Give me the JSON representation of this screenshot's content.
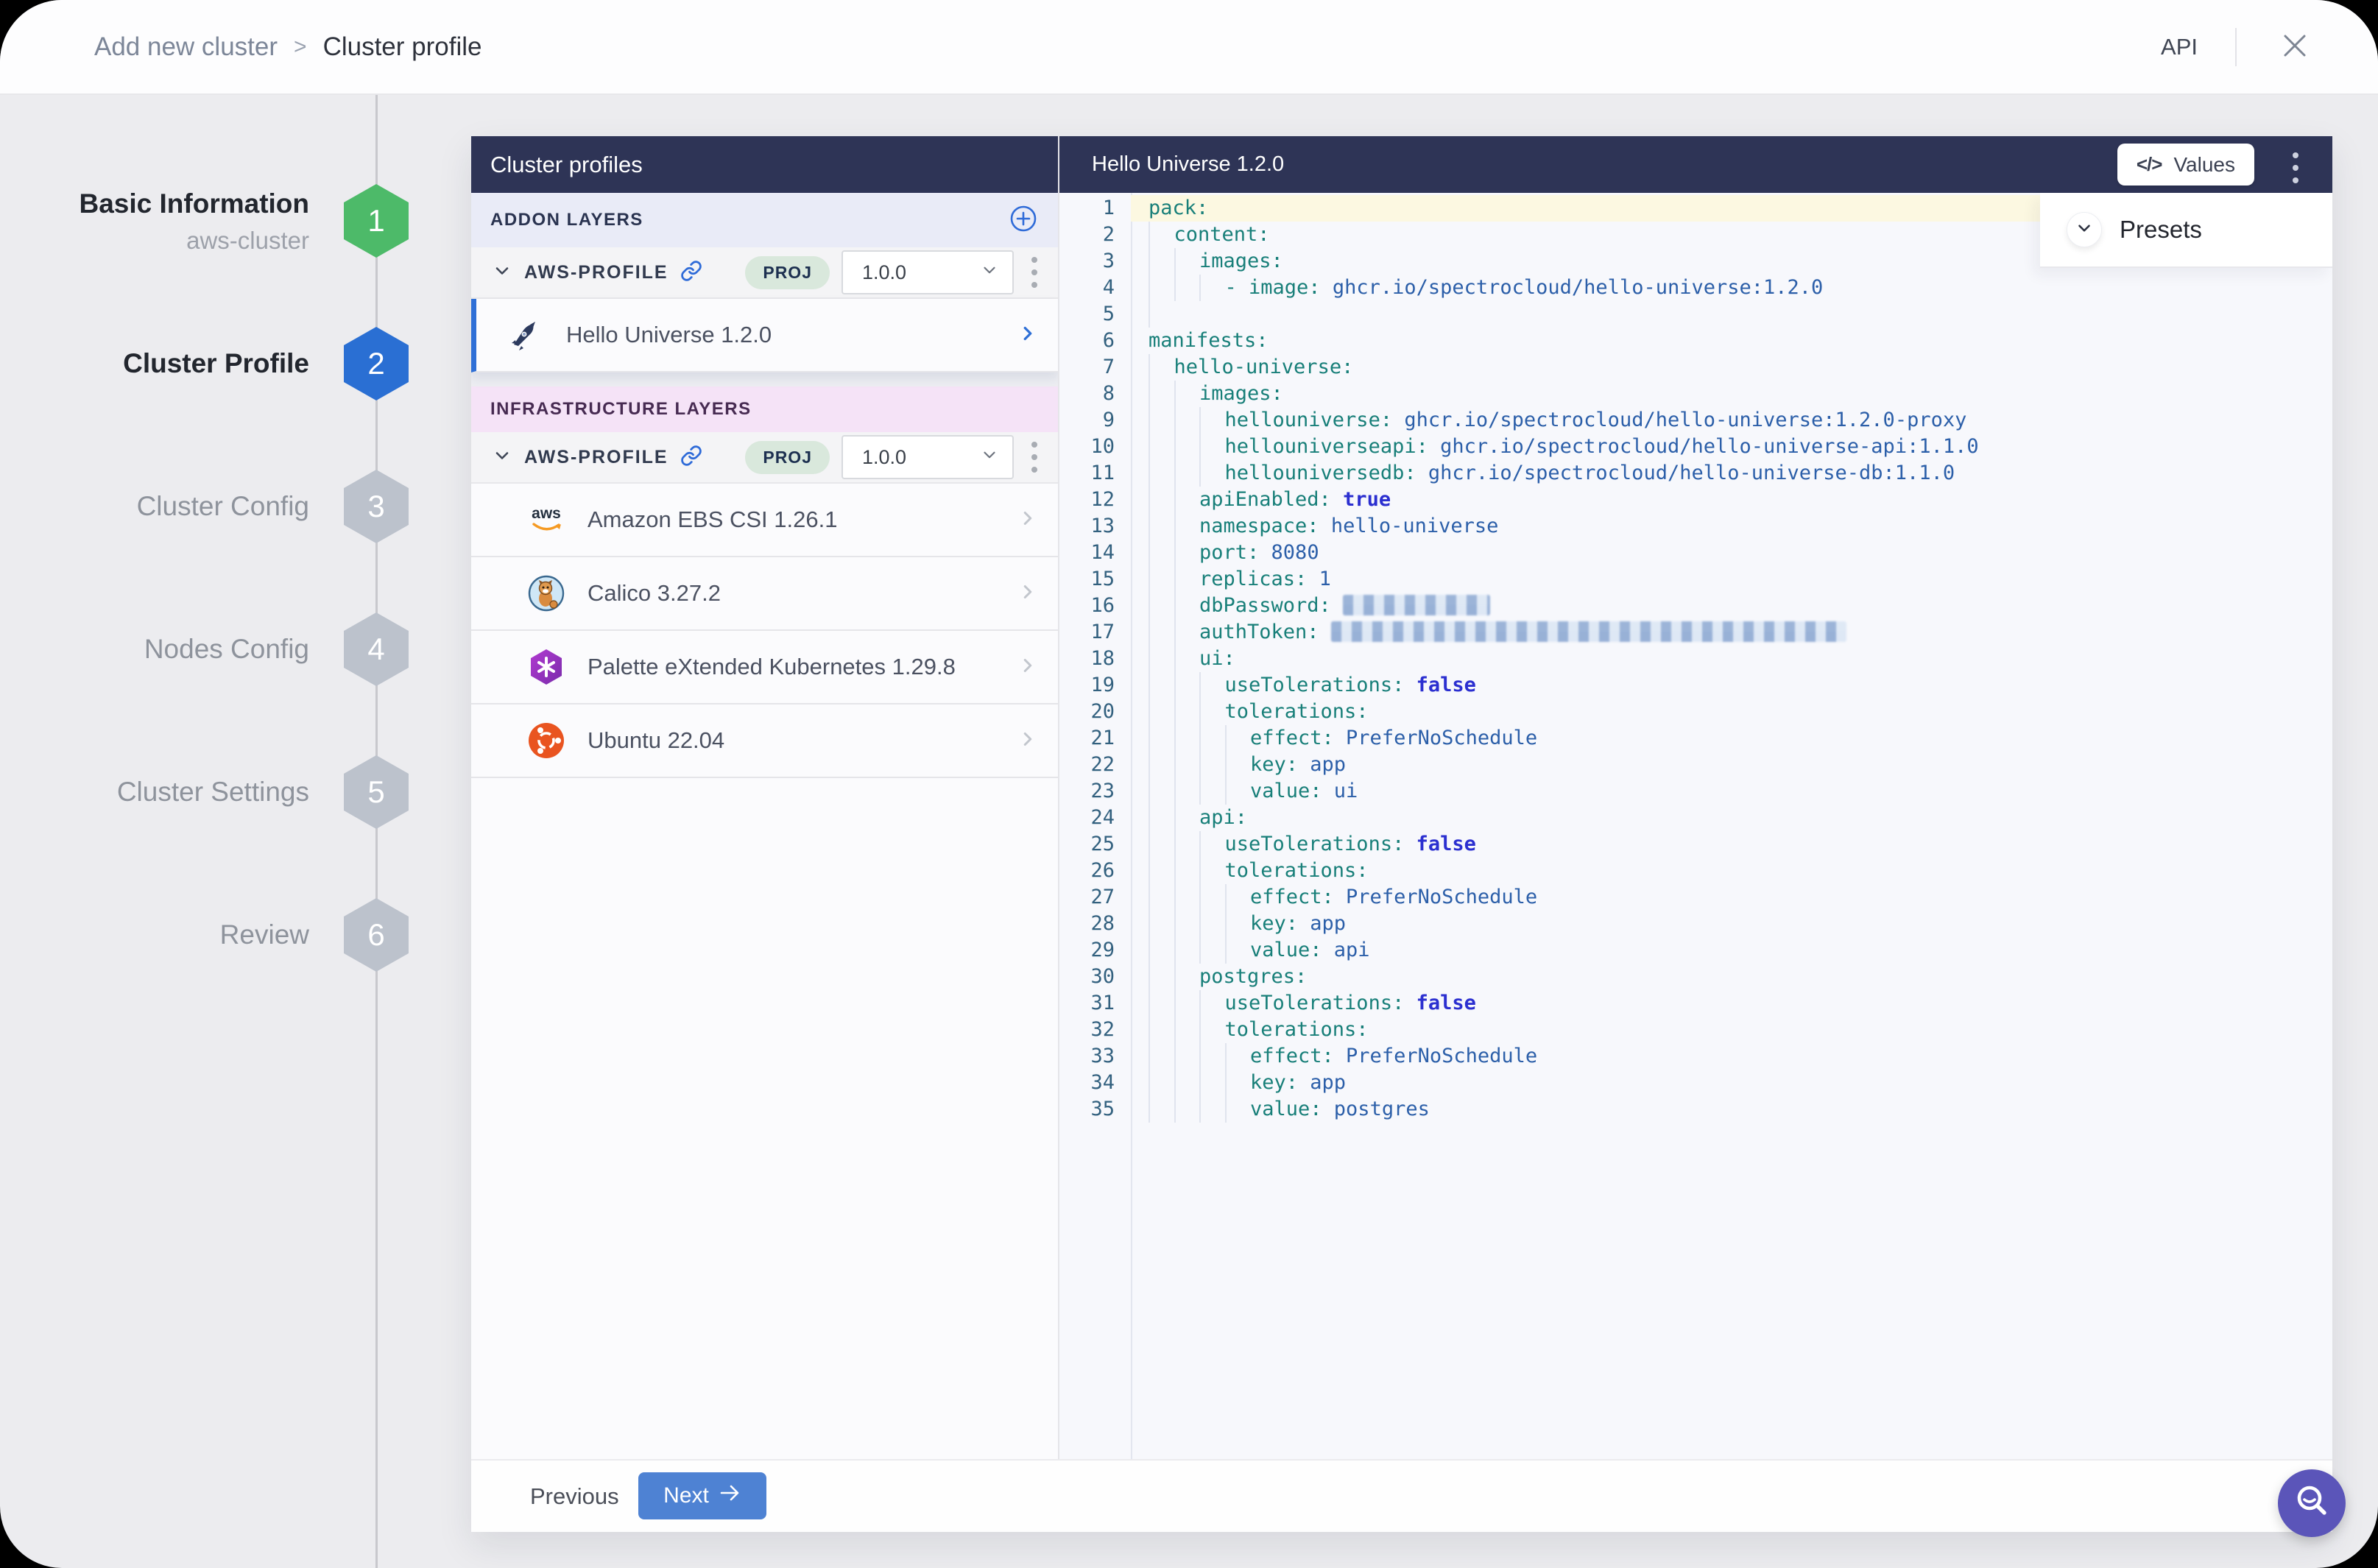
{
  "window": {
    "breadcrumb": {
      "parent": "Add new cluster",
      "separator": ">",
      "current": "Cluster profile"
    },
    "api_label": "API"
  },
  "stepper": {
    "steps": [
      {
        "num": "1",
        "label": "Basic Information",
        "sublabel": "aws-cluster",
        "state": "complete"
      },
      {
        "num": "2",
        "label": "Cluster Profile",
        "sublabel": "",
        "state": "active"
      },
      {
        "num": "3",
        "label": "Cluster Config",
        "sublabel": "",
        "state": "upcoming"
      },
      {
        "num": "4",
        "label": "Nodes Config",
        "sublabel": "",
        "state": "upcoming"
      },
      {
        "num": "5",
        "label": "Cluster Settings",
        "sublabel": "",
        "state": "upcoming"
      },
      {
        "num": "6",
        "label": "Review",
        "sublabel": "",
        "state": "upcoming"
      }
    ]
  },
  "profiles_panel": {
    "title": "Cluster profiles",
    "sections": [
      {
        "id": "addon",
        "label": "ADDON LAYERS",
        "has_add_button": true,
        "profile": {
          "name": "AWS-PROFILE",
          "scope": "PROJ",
          "version": "1.0.0"
        },
        "items": [
          {
            "label": "Hello Universe 1.2.0",
            "icon": "rocket-icon",
            "selected": true
          }
        ]
      },
      {
        "id": "infra",
        "label": "INFRASTRUCTURE LAYERS",
        "has_add_button": false,
        "profile": {
          "name": "AWS-PROFILE",
          "scope": "PROJ",
          "version": "1.0.0"
        },
        "items": [
          {
            "label": "Amazon EBS CSI 1.26.1",
            "icon": "aws-icon",
            "selected": false
          },
          {
            "label": "Calico 3.27.2",
            "icon": "calico-icon",
            "selected": false
          },
          {
            "label": "Palette eXtended Kubernetes 1.29.8",
            "icon": "kubernetes-icon",
            "selected": false
          },
          {
            "label": "Ubuntu 22.04",
            "icon": "ubuntu-icon",
            "selected": false
          }
        ]
      }
    ]
  },
  "editor": {
    "title": "Hello Universe 1.2.0",
    "values_button_label": "Values",
    "values_button_glyph": "</>",
    "presets_label": "Presets",
    "lines": [
      {
        "ind": 0,
        "hl": true,
        "seg": [
          {
            "c": "key",
            "t": "pack:"
          }
        ]
      },
      {
        "ind": 1,
        "hl": false,
        "seg": [
          {
            "c": "key",
            "t": "content:"
          }
        ]
      },
      {
        "ind": 2,
        "hl": false,
        "seg": [
          {
            "c": "key",
            "t": "images:"
          }
        ]
      },
      {
        "ind": 3,
        "hl": false,
        "seg": [
          {
            "c": "key",
            "t": "- image: "
          },
          {
            "c": "val",
            "t": "ghcr.io/spectrocloud/hello-universe:1.2.0"
          }
        ]
      },
      {
        "ind": 1,
        "hl": false,
        "seg": []
      },
      {
        "ind": 0,
        "hl": false,
        "seg": [
          {
            "c": "key",
            "t": "manifests:"
          }
        ]
      },
      {
        "ind": 1,
        "hl": false,
        "seg": [
          {
            "c": "key",
            "t": "hello-universe:"
          }
        ]
      },
      {
        "ind": 2,
        "hl": false,
        "seg": [
          {
            "c": "key",
            "t": "images:"
          }
        ]
      },
      {
        "ind": 3,
        "hl": false,
        "seg": [
          {
            "c": "key",
            "t": "hellouniverse: "
          },
          {
            "c": "val",
            "t": "ghcr.io/spectrocloud/hello-universe:1.2.0-proxy"
          }
        ]
      },
      {
        "ind": 3,
        "hl": false,
        "seg": [
          {
            "c": "key",
            "t": "hellouniverseapi: "
          },
          {
            "c": "val",
            "t": "ghcr.io/spectrocloud/hello-universe-api:1.1.0"
          }
        ]
      },
      {
        "ind": 3,
        "hl": false,
        "seg": [
          {
            "c": "key",
            "t": "hellouniversedb: "
          },
          {
            "c": "val",
            "t": "ghcr.io/spectrocloud/hello-universe-db:1.1.0"
          }
        ]
      },
      {
        "ind": 2,
        "hl": false,
        "seg": [
          {
            "c": "key",
            "t": "apiEnabled: "
          },
          {
            "c": "bool",
            "t": "true"
          }
        ]
      },
      {
        "ind": 2,
        "hl": false,
        "seg": [
          {
            "c": "key",
            "t": "namespace: "
          },
          {
            "c": "val",
            "t": "hello-universe"
          }
        ]
      },
      {
        "ind": 2,
        "hl": false,
        "seg": [
          {
            "c": "key",
            "t": "port: "
          },
          {
            "c": "val",
            "t": "8080"
          }
        ]
      },
      {
        "ind": 2,
        "hl": false,
        "seg": [
          {
            "c": "key",
            "t": "replicas: "
          },
          {
            "c": "val",
            "t": "1"
          }
        ]
      },
      {
        "ind": 2,
        "hl": false,
        "seg": [
          {
            "c": "key",
            "t": "dbPassword: "
          },
          {
            "c": "redact_short",
            "t": ""
          }
        ]
      },
      {
        "ind": 2,
        "hl": false,
        "seg": [
          {
            "c": "key",
            "t": "authToken: "
          },
          {
            "c": "redact_long",
            "t": ""
          }
        ]
      },
      {
        "ind": 2,
        "hl": false,
        "seg": [
          {
            "c": "key",
            "t": "ui:"
          }
        ]
      },
      {
        "ind": 3,
        "hl": false,
        "seg": [
          {
            "c": "key",
            "t": "useTolerations: "
          },
          {
            "c": "bool",
            "t": "false"
          }
        ]
      },
      {
        "ind": 3,
        "hl": false,
        "seg": [
          {
            "c": "key",
            "t": "tolerations:"
          }
        ]
      },
      {
        "ind": 4,
        "hl": false,
        "seg": [
          {
            "c": "key",
            "t": "effect: "
          },
          {
            "c": "val",
            "t": "PreferNoSchedule"
          }
        ]
      },
      {
        "ind": 4,
        "hl": false,
        "seg": [
          {
            "c": "key",
            "t": "key: "
          },
          {
            "c": "val",
            "t": "app"
          }
        ]
      },
      {
        "ind": 4,
        "hl": false,
        "seg": [
          {
            "c": "key",
            "t": "value: "
          },
          {
            "c": "val",
            "t": "ui"
          }
        ]
      },
      {
        "ind": 2,
        "hl": false,
        "seg": [
          {
            "c": "key",
            "t": "api:"
          }
        ]
      },
      {
        "ind": 3,
        "hl": false,
        "seg": [
          {
            "c": "key",
            "t": "useTolerations: "
          },
          {
            "c": "bool",
            "t": "false"
          }
        ]
      },
      {
        "ind": 3,
        "hl": false,
        "seg": [
          {
            "c": "key",
            "t": "tolerations:"
          }
        ]
      },
      {
        "ind": 4,
        "hl": false,
        "seg": [
          {
            "c": "key",
            "t": "effect: "
          },
          {
            "c": "val",
            "t": "PreferNoSchedule"
          }
        ]
      },
      {
        "ind": 4,
        "hl": false,
        "seg": [
          {
            "c": "key",
            "t": "key: "
          },
          {
            "c": "val",
            "t": "app"
          }
        ]
      },
      {
        "ind": 4,
        "hl": false,
        "seg": [
          {
            "c": "key",
            "t": "value: "
          },
          {
            "c": "val",
            "t": "api"
          }
        ]
      },
      {
        "ind": 2,
        "hl": false,
        "seg": [
          {
            "c": "key",
            "t": "postgres:"
          }
        ]
      },
      {
        "ind": 3,
        "hl": false,
        "seg": [
          {
            "c": "key",
            "t": "useTolerations: "
          },
          {
            "c": "bool",
            "t": "false"
          }
        ]
      },
      {
        "ind": 3,
        "hl": false,
        "seg": [
          {
            "c": "key",
            "t": "tolerations:"
          }
        ]
      },
      {
        "ind": 4,
        "hl": false,
        "seg": [
          {
            "c": "key",
            "t": "effect: "
          },
          {
            "c": "val",
            "t": "PreferNoSchedule"
          }
        ]
      },
      {
        "ind": 4,
        "hl": false,
        "seg": [
          {
            "c": "key",
            "t": "key: "
          },
          {
            "c": "val",
            "t": "app"
          }
        ]
      },
      {
        "ind": 4,
        "hl": false,
        "seg": [
          {
            "c": "key",
            "t": "value: "
          },
          {
            "c": "val",
            "t": "postgres"
          }
        ]
      }
    ]
  },
  "footer": {
    "previous_label": "Previous",
    "next_label": "Next"
  },
  "colors": {
    "header_navy": "#2e3456",
    "accent_blue": "#2e6fd6",
    "step_green": "#4dba69",
    "step_blue": "#2a6fd3",
    "step_gray": "#bcc2cc",
    "badge_bg": "#d9e8dc",
    "badge_text": "#1d3050",
    "addon_band_bg": "#e9ebf7",
    "infra_band_bg": "#f5e3f7",
    "code_key": "#187f79",
    "code_value": "#2c5fa9",
    "code_bool": "#2b2fd0",
    "line_highlight": "#fcf8e1",
    "next_button_blue": "#4e82d3",
    "beacon_purple": "#5b55b9"
  }
}
